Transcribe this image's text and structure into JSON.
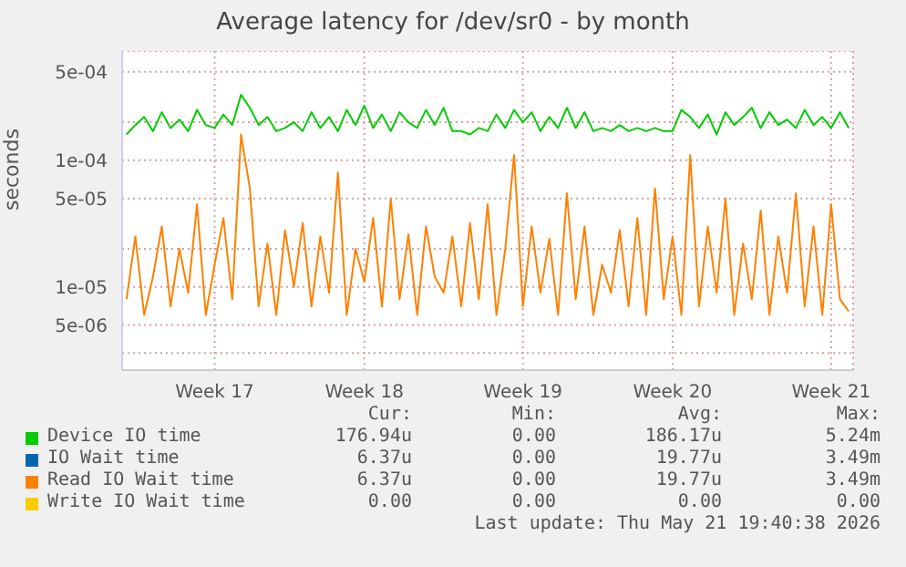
{
  "chart_data": {
    "type": "line",
    "title": "Average latency for /dev/sr0 - by month",
    "ylabel": "seconds",
    "categories": [
      null,
      null,
      null,
      null,
      null,
      null,
      null,
      null,
      null,
      null,
      "Week 17",
      null,
      null,
      null,
      null,
      null,
      null,
      null,
      null,
      null,
      null,
      null,
      null,
      null,
      null,
      null,
      null,
      "Week 18",
      null,
      null,
      null,
      null,
      null,
      null,
      null,
      null,
      null,
      null,
      null,
      null,
      null,
      null,
      null,
      null,
      null,
      "Week 19",
      null,
      null,
      null,
      null,
      null,
      null,
      null,
      null,
      null,
      null,
      null,
      null,
      null,
      null,
      null,
      null,
      "Week 20",
      null,
      null,
      null,
      null,
      null,
      null,
      null,
      null,
      null,
      null,
      null,
      null,
      null,
      null,
      null,
      null,
      null,
      "Week 21",
      null,
      null
    ],
    "series": [
      {
        "name": "Device IO time",
        "color": "#00cc00",
        "values": [
          0.00016,
          0.00019,
          0.00022,
          0.00017,
          0.00024,
          0.00018,
          0.00021,
          0.00017,
          0.00025,
          0.00019,
          0.00018,
          0.00023,
          0.00019,
          0.00033,
          0.00026,
          0.00019,
          0.00022,
          0.00017,
          0.00018,
          0.0002,
          0.00017,
          0.00024,
          0.00018,
          0.00022,
          0.00017,
          0.00025,
          0.00019,
          0.00027,
          0.00018,
          0.00023,
          0.00017,
          0.00024,
          0.0002,
          0.00018,
          0.00025,
          0.00019,
          0.00026,
          0.00017,
          0.00017,
          0.00016,
          0.00018,
          0.00017,
          0.00023,
          0.00018,
          0.00025,
          0.0002,
          0.00024,
          0.00017,
          0.00022,
          0.00018,
          0.00026,
          0.00018,
          0.00024,
          0.00017,
          0.00018,
          0.00017,
          0.00019,
          0.00017,
          0.00018,
          0.00017,
          0.00018,
          0.00017,
          0.00017,
          0.00025,
          0.00022,
          0.00018,
          0.00023,
          0.00016,
          0.00024,
          0.00019,
          0.00022,
          0.00026,
          0.00018,
          0.00024,
          0.00019,
          0.00021,
          0.00018,
          0.00025,
          0.00019,
          0.00022,
          0.00018,
          0.00024,
          0.00018
        ]
      },
      {
        "name": "IO Wait time",
        "color": "#0066b3",
        "values": [
          null,
          null,
          null,
          null,
          null,
          null,
          null,
          null,
          null,
          null,
          null,
          null,
          null,
          null,
          null,
          null,
          null,
          null,
          null,
          null,
          null,
          null,
          null,
          null,
          null,
          null,
          null,
          null,
          null,
          null,
          null,
          null,
          null,
          null,
          null,
          null,
          null,
          null,
          null,
          null,
          null,
          null,
          null,
          null,
          null,
          null,
          null,
          null,
          null,
          null,
          null,
          null,
          null,
          null,
          null,
          null,
          null,
          null,
          null,
          null,
          null,
          null,
          null,
          null,
          null,
          null,
          null,
          null,
          null,
          null,
          null,
          null,
          null,
          null,
          null,
          null,
          null,
          null,
          null,
          null,
          null,
          null,
          null
        ]
      },
      {
        "name": "Read IO Wait time",
        "color": "#ff8000",
        "values": [
          8e-06,
          2.5e-05,
          6e-06,
          1.2e-05,
          3e-05,
          7e-06,
          2e-05,
          9e-06,
          4.5e-05,
          6e-06,
          1.5e-05,
          3.5e-05,
          8e-06,
          0.00016,
          6e-05,
          7e-06,
          2.2e-05,
          6e-06,
          2.8e-05,
          1e-05,
          3.2e-05,
          7e-06,
          2.5e-05,
          9e-06,
          8e-05,
          6e-06,
          2e-05,
          1.1e-05,
          3.5e-05,
          7e-06,
          5e-05,
          8e-06,
          2.6e-05,
          6e-06,
          3e-05,
          1.2e-05,
          9e-06,
          2.5e-05,
          7e-06,
          3.2e-05,
          8e-06,
          4.5e-05,
          6e-06,
          2e-05,
          0.00011,
          7e-06,
          3e-05,
          9e-06,
          2.4e-05,
          6e-06,
          5.5e-05,
          8e-06,
          3e-05,
          6e-06,
          1.5e-05,
          9e-06,
          2.8e-05,
          7e-06,
          3.5e-05,
          6e-06,
          6e-05,
          8e-06,
          2.5e-05,
          6e-06,
          0.00011,
          7e-06,
          3e-05,
          9e-06,
          5e-05,
          6e-06,
          2.2e-05,
          8e-06,
          4e-05,
          6e-06,
          2.5e-05,
          9e-06,
          5.5e-05,
          7e-06,
          3e-05,
          6e-06,
          4.5e-05,
          8e-06,
          6.4e-06
        ]
      },
      {
        "name": "Write IO Wait time",
        "color": "#ffcc00",
        "values": [
          null,
          null,
          null,
          null,
          null,
          null,
          null,
          null,
          null,
          null,
          null,
          null,
          null,
          null,
          null,
          null,
          null,
          null,
          null,
          null,
          null,
          null,
          null,
          null,
          null,
          null,
          null,
          null,
          null,
          null,
          null,
          null,
          null,
          null,
          null,
          null,
          null,
          null,
          null,
          null,
          null,
          null,
          null,
          null,
          null,
          null,
          null,
          null,
          null,
          null,
          null,
          null,
          null,
          null,
          null,
          null,
          null,
          null,
          null,
          null,
          null,
          null,
          null,
          null,
          null,
          null,
          null,
          null,
          null,
          null,
          null,
          null,
          null,
          null,
          null,
          null,
          null,
          null,
          null,
          null,
          null,
          null,
          null
        ]
      }
    ],
    "ylim": [
      2.2e-06,
      0.00073
    ],
    "yticks": [
      {
        "value": 3e-06,
        "label": null
      },
      {
        "value": 5e-06,
        "label": "5e-06"
      },
      {
        "value": 1e-05,
        "label": "1e-05"
      },
      {
        "value": 2e-05,
        "label": null
      },
      {
        "value": 5e-05,
        "label": "5e-05"
      },
      {
        "value": 0.0001,
        "label": "1e-04"
      },
      {
        "value": 0.0002,
        "label": null
      },
      {
        "value": 0.0005,
        "label": "5e-04"
      }
    ],
    "log": "y",
    "grid": true,
    "legend": "bottom",
    "marker": "none",
    "line_style": "solid",
    "annotations": [
      "Cur:",
      "Min:",
      "Avg:",
      "Max:",
      "176.94u",
      "0.00",
      "186.17u",
      "5.24m",
      "6.37u",
      "0.00",
      "19.77u",
      "3.49m",
      "6.37u",
      "0.00",
      "19.77u",
      "3.49m",
      "0.00",
      "0.00",
      "0.00",
      "0.00",
      "Last update: Thu May 21 19:40:38 2026"
    ]
  }
}
